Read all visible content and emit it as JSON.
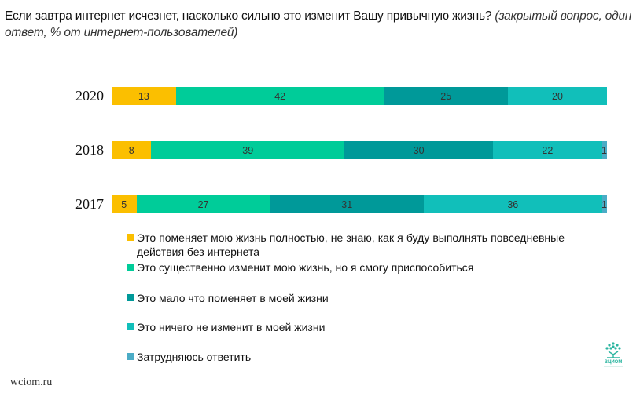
{
  "title": {
    "question": "Если завтра интернет исчезнет, насколько сильно это изменит Вашу привычную жизнь?",
    "note": "(закрытый вопрос, один ответ, % от интернет-пользователей)"
  },
  "legend": [
    {
      "label": "Это поменяет мою жизнь полностью, не знаю, как я буду выполнять повседневные действия без интернета",
      "color": "#FBBF00"
    },
    {
      "label": "Это существенно изменит мою жизнь, но я смогу приспособиться",
      "color": "#00CC99"
    },
    {
      "label": "Это мало что поменяет в моей жизни",
      "color": "#009999"
    },
    {
      "label": "Это ничего не изменит в моей жизни",
      "color": "#11BFBA"
    },
    {
      "label": "Затрудняюсь ответить",
      "color": "#4BACC6"
    }
  ],
  "footer": {
    "site": "wciom.ru",
    "logo_text": "ВЦИОМ"
  },
  "chart_data": {
    "type": "bar",
    "orientation": "horizontal",
    "stacked": true,
    "title": "Если завтра интернет исчезнет, насколько сильно это изменит Вашу привычную жизнь? (закрытый вопрос, один ответ, % от интернет-пользователей)",
    "categories": [
      "2020",
      "2018",
      "2017"
    ],
    "series": [
      {
        "name": "Это поменяет мою жизнь полностью, не знаю, как я буду выполнять повседневные действия без интернета",
        "color": "#FBBF00",
        "values": [
          13,
          8,
          5
        ]
      },
      {
        "name": "Это существенно изменит мою жизнь, но я смогу приспособиться",
        "color": "#00CC99",
        "values": [
          42,
          39,
          27
        ]
      },
      {
        "name": "Это мало что поменяет в моей жизни",
        "color": "#009999",
        "values": [
          25,
          30,
          31
        ]
      },
      {
        "name": "Это ничего не изменит в моей жизни",
        "color": "#11BFBA",
        "values": [
          20,
          22,
          36
        ]
      },
      {
        "name": "Затрудняюсь ответить",
        "color": "#4BACC6",
        "values": [
          0,
          1,
          1
        ]
      }
    ],
    "xlabel": "",
    "ylabel": "",
    "grid": false,
    "legend_position": "bottom"
  }
}
